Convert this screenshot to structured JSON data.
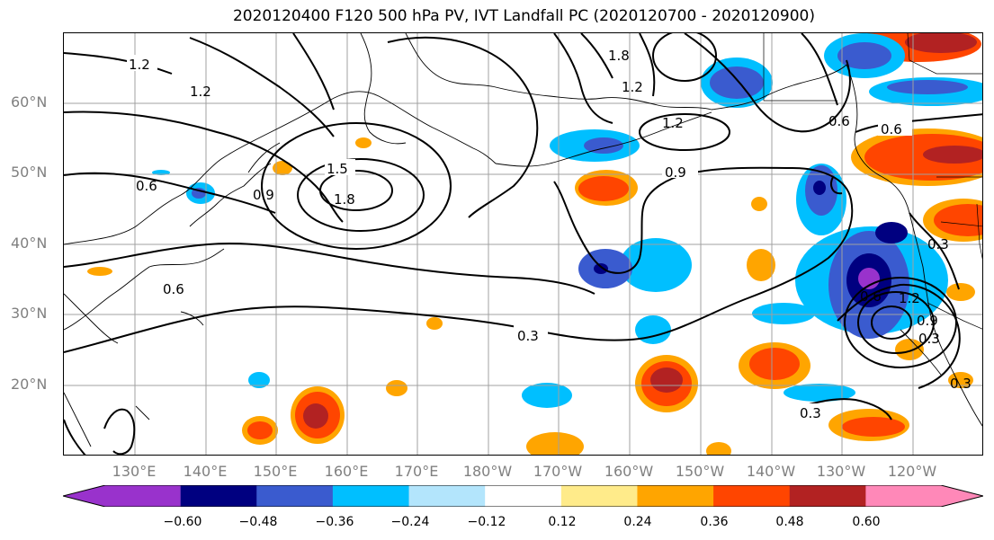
{
  "title": "2020120400 F120 500 hPa PV, IVT Landfall PC (2020120700 - 2020120900)",
  "lat_labels": [
    "60°N",
    "50°N",
    "40°N",
    "30°N",
    "20°N"
  ],
  "lon_labels": [
    "130°E",
    "140°E",
    "150°E",
    "160°E",
    "170°E",
    "180°W",
    "170°W",
    "160°W",
    "150°W",
    "140°W",
    "130°W",
    "120°W"
  ],
  "colorbar": {
    "ticks": [
      "−0.60",
      "−0.48",
      "−0.36",
      "−0.24",
      "−0.12",
      "0.12",
      "0.24",
      "0.36",
      "0.48",
      "0.60"
    ],
    "colors": [
      "#9932cc",
      "#000080",
      "#3a5bcf",
      "#00bfff",
      "#b3e5fc",
      "#ffffff",
      "#ffeb8a",
      "#ffa500",
      "#ff4500",
      "#b22222",
      "#ff88b8"
    ]
  },
  "contour_labels": [
    "1.2",
    "1.2",
    "1.5",
    "1.8",
    "0.9",
    "0.6",
    "0.6",
    "1.8",
    "1.2",
    "1.2",
    "0.9",
    "0.6",
    "0.6",
    "0.3",
    "0.3",
    "0.3",
    "0.6",
    "0.9",
    "1.2",
    "0.3",
    "0.3"
  ],
  "colors": {
    "axis_text": "#808080",
    "grid": "#a0a0a0",
    "contour": "#000000"
  }
}
